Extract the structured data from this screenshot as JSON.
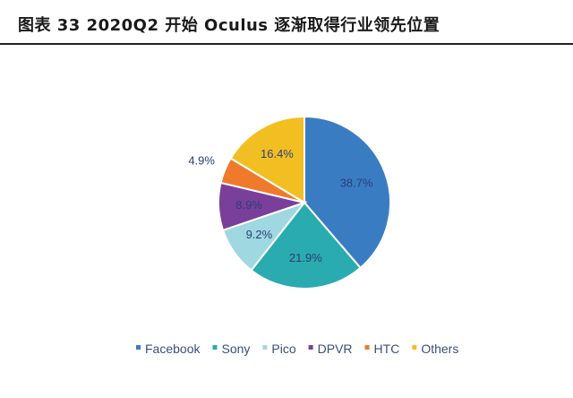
{
  "title": "图表 33 2020Q2  开始 Oculus 逐渐取得行业领先位置",
  "chart_data": {
    "type": "pie",
    "categories": [
      "Facebook",
      "Sony",
      "Pico",
      "DPVR",
      "HTC",
      "Others"
    ],
    "values": [
      38.7,
      21.9,
      9.2,
      8.9,
      4.9,
      16.4
    ],
    "labels": [
      "38.7%",
      "21.9%",
      "9.2%",
      "8.9%",
      "4.9%",
      "16.4%"
    ],
    "colors": [
      "#3a7cc2",
      "#2aabb0",
      "#9fd8e0",
      "#7a3f9a",
      "#ef7a2b",
      "#f2bf22"
    ],
    "label_colors": [
      "#2a3f7a",
      "#2a3f7a",
      "#2a3f7a",
      "#2a3f7a",
      "#2a3f7a",
      "#2a3f7a"
    ],
    "start_angle_deg": 0,
    "direction": "clockwise",
    "legend_position": "bottom"
  }
}
